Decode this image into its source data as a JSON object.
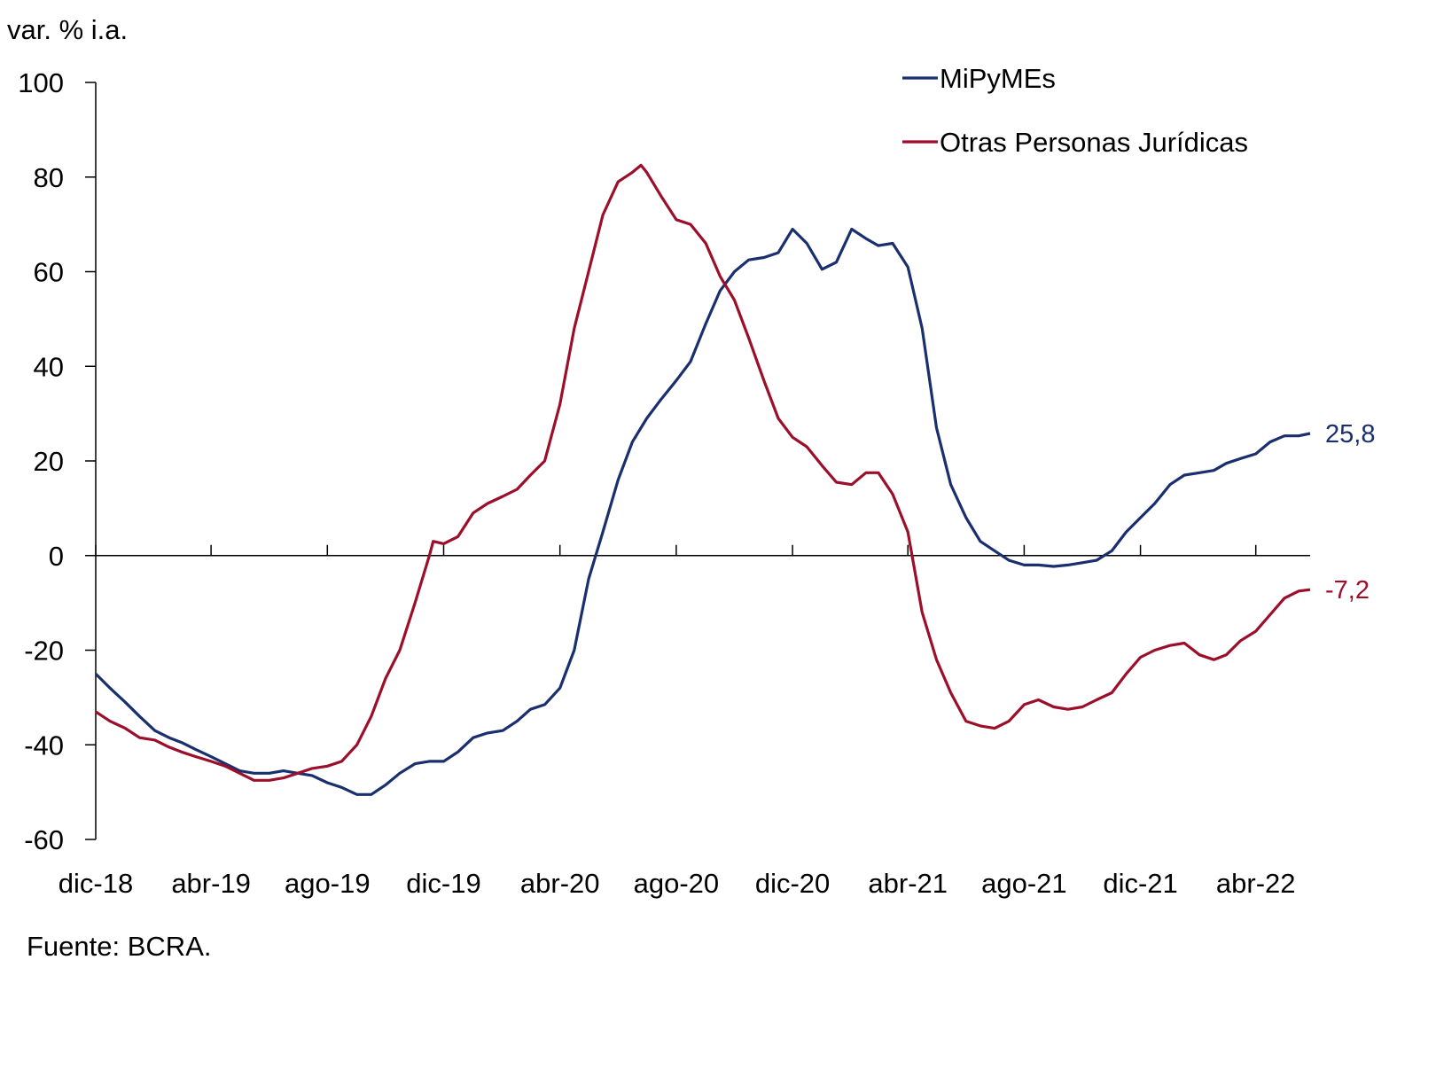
{
  "chart_data": {
    "type": "line",
    "ylabel": "var. % i.a.",
    "ylim": [
      -60,
      100
    ],
    "yticks": [
      100,
      80,
      60,
      40,
      20,
      0,
      -20,
      -40,
      -60
    ],
    "xticks": [
      "dic-18",
      "abr-19",
      "ago-19",
      "dic-19",
      "abr-20",
      "ago-20",
      "dic-20",
      "abr-21",
      "ago-21",
      "dic-21",
      "abr-22"
    ],
    "xtick_dates": [
      "2018-12-01",
      "2019-04-01",
      "2019-08-01",
      "2019-12-01",
      "2020-04-01",
      "2020-08-01",
      "2020-12-01",
      "2021-04-01",
      "2021-08-01",
      "2021-12-01",
      "2022-04-01"
    ],
    "xlim": [
      "2018-12-01",
      "2022-05-28"
    ],
    "grid": false,
    "legend_position": "top-right",
    "source": "Fuente: BCRA.",
    "series": [
      {
        "name": "MiPyMEs",
        "color": "#1a2f6e",
        "end_label": "25,8",
        "points": [
          [
            "2018-12-01",
            -25
          ],
          [
            "2018-12-16",
            -28
          ],
          [
            "2019-01-01",
            -31
          ],
          [
            "2019-01-16",
            -34
          ],
          [
            "2019-02-01",
            -37
          ],
          [
            "2019-02-16",
            -38.5
          ],
          [
            "2019-03-01",
            -39.5
          ],
          [
            "2019-03-16",
            -41
          ],
          [
            "2019-04-01",
            -42.5
          ],
          [
            "2019-04-16",
            -44
          ],
          [
            "2019-05-01",
            -45.5
          ],
          [
            "2019-05-16",
            -46
          ],
          [
            "2019-06-01",
            -46
          ],
          [
            "2019-06-16",
            -45.5
          ],
          [
            "2019-07-01",
            -46
          ],
          [
            "2019-07-16",
            -46.5
          ],
          [
            "2019-08-01",
            -48
          ],
          [
            "2019-08-16",
            -49
          ],
          [
            "2019-09-01",
            -50.5
          ],
          [
            "2019-09-16",
            -50.5
          ],
          [
            "2019-10-01",
            -48.5
          ],
          [
            "2019-10-16",
            -46
          ],
          [
            "2019-11-01",
            -44
          ],
          [
            "2019-11-16",
            -43.5
          ],
          [
            "2019-12-01",
            -43.5
          ],
          [
            "2019-12-16",
            -41.5
          ],
          [
            "2020-01-01",
            -38.5
          ],
          [
            "2020-01-16",
            -37.5
          ],
          [
            "2020-02-01",
            -37
          ],
          [
            "2020-02-16",
            -35
          ],
          [
            "2020-03-01",
            -32.5
          ],
          [
            "2020-03-16",
            -31.5
          ],
          [
            "2020-04-01",
            -28
          ],
          [
            "2020-04-16",
            -20
          ],
          [
            "2020-05-01",
            -5
          ],
          [
            "2020-05-16",
            5
          ],
          [
            "2020-06-01",
            16
          ],
          [
            "2020-06-16",
            24
          ],
          [
            "2020-07-01",
            29
          ],
          [
            "2020-07-16",
            33
          ],
          [
            "2020-08-01",
            37
          ],
          [
            "2020-08-16",
            41
          ],
          [
            "2020-09-01",
            49
          ],
          [
            "2020-09-16",
            56
          ],
          [
            "2020-10-01",
            60
          ],
          [
            "2020-10-16",
            62.5
          ],
          [
            "2020-11-01",
            63
          ],
          [
            "2020-11-16",
            64
          ],
          [
            "2020-12-01",
            69
          ],
          [
            "2020-12-16",
            66
          ],
          [
            "2021-01-01",
            60.5
          ],
          [
            "2021-01-16",
            62
          ],
          [
            "2021-02-01",
            69
          ],
          [
            "2021-02-16",
            67
          ],
          [
            "2021-03-01",
            65.5
          ],
          [
            "2021-03-16",
            66
          ],
          [
            "2021-04-01",
            61
          ],
          [
            "2021-04-16",
            48
          ],
          [
            "2021-05-01",
            27
          ],
          [
            "2021-05-16",
            15
          ],
          [
            "2021-06-01",
            8
          ],
          [
            "2021-06-16",
            3
          ],
          [
            "2021-07-01",
            1
          ],
          [
            "2021-07-16",
            -1
          ],
          [
            "2021-08-01",
            -2
          ],
          [
            "2021-08-16",
            -2
          ],
          [
            "2021-09-01",
            -2.3
          ],
          [
            "2021-09-16",
            -2
          ],
          [
            "2021-10-01",
            -1.5
          ],
          [
            "2021-10-16",
            -1
          ],
          [
            "2021-11-01",
            1
          ],
          [
            "2021-11-16",
            5
          ],
          [
            "2021-12-01",
            8
          ],
          [
            "2021-12-16",
            11
          ],
          [
            "2022-01-01",
            15
          ],
          [
            "2022-01-16",
            17
          ],
          [
            "2022-02-01",
            17.5
          ],
          [
            "2022-02-16",
            18
          ],
          [
            "2022-03-01",
            19.5
          ],
          [
            "2022-03-16",
            20.5
          ],
          [
            "2022-04-01",
            21.5
          ],
          [
            "2022-04-16",
            24
          ],
          [
            "2022-05-01",
            25.3
          ],
          [
            "2022-05-16",
            25.3
          ],
          [
            "2022-05-28",
            25.8
          ]
        ]
      },
      {
        "name": "Otras Personas Jurídicas",
        "color": "#9b0f2a",
        "end_label": "-7,2",
        "points": [
          [
            "2018-12-01",
            -33
          ],
          [
            "2018-12-16",
            -35
          ],
          [
            "2019-01-01",
            -36.5
          ],
          [
            "2019-01-16",
            -38.5
          ],
          [
            "2019-02-01",
            -39
          ],
          [
            "2019-02-16",
            -40.5
          ],
          [
            "2019-03-01",
            -41.5
          ],
          [
            "2019-03-16",
            -42.5
          ],
          [
            "2019-04-01",
            -43.5
          ],
          [
            "2019-04-16",
            -44.5
          ],
          [
            "2019-05-01",
            -46
          ],
          [
            "2019-05-16",
            -47.5
          ],
          [
            "2019-06-01",
            -47.5
          ],
          [
            "2019-06-16",
            -47
          ],
          [
            "2019-07-01",
            -46
          ],
          [
            "2019-07-16",
            -45
          ],
          [
            "2019-08-01",
            -44.5
          ],
          [
            "2019-08-16",
            -43.5
          ],
          [
            "2019-09-01",
            -40
          ],
          [
            "2019-09-16",
            -34
          ],
          [
            "2019-10-01",
            -26
          ],
          [
            "2019-10-16",
            -20
          ],
          [
            "2019-11-01",
            -10
          ],
          [
            "2019-11-16",
            0
          ],
          [
            "2019-11-20",
            3
          ],
          [
            "2019-12-01",
            2.5
          ],
          [
            "2019-12-16",
            4
          ],
          [
            "2020-01-01",
            9
          ],
          [
            "2020-01-16",
            11
          ],
          [
            "2020-02-01",
            12.5
          ],
          [
            "2020-02-16",
            14
          ],
          [
            "2020-03-01",
            17
          ],
          [
            "2020-03-16",
            20
          ],
          [
            "2020-04-01",
            32
          ],
          [
            "2020-04-16",
            48
          ],
          [
            "2020-05-01",
            60
          ],
          [
            "2020-05-16",
            72
          ],
          [
            "2020-06-01",
            79
          ],
          [
            "2020-06-16",
            81
          ],
          [
            "2020-06-25",
            82.5
          ],
          [
            "2020-07-01",
            81
          ],
          [
            "2020-07-16",
            76
          ],
          [
            "2020-08-01",
            71
          ],
          [
            "2020-08-16",
            70
          ],
          [
            "2020-09-01",
            66
          ],
          [
            "2020-09-16",
            59
          ],
          [
            "2020-10-01",
            54
          ],
          [
            "2020-10-16",
            46
          ],
          [
            "2020-11-01",
            37
          ],
          [
            "2020-11-16",
            29
          ],
          [
            "2020-12-01",
            25
          ],
          [
            "2020-12-16",
            23
          ],
          [
            "2021-01-01",
            19
          ],
          [
            "2021-01-16",
            15.5
          ],
          [
            "2021-02-01",
            15
          ],
          [
            "2021-02-16",
            17.5
          ],
          [
            "2021-03-01",
            17.5
          ],
          [
            "2021-03-16",
            13
          ],
          [
            "2021-04-01",
            5
          ],
          [
            "2021-04-16",
            -12
          ],
          [
            "2021-05-01",
            -22
          ],
          [
            "2021-05-16",
            -29
          ],
          [
            "2021-06-01",
            -35
          ],
          [
            "2021-06-16",
            -36
          ],
          [
            "2021-07-01",
            -36.5
          ],
          [
            "2021-07-16",
            -35
          ],
          [
            "2021-08-01",
            -31.5
          ],
          [
            "2021-08-16",
            -30.5
          ],
          [
            "2021-09-01",
            -32
          ],
          [
            "2021-09-16",
            -32.5
          ],
          [
            "2021-10-01",
            -32
          ],
          [
            "2021-10-16",
            -30.5
          ],
          [
            "2021-11-01",
            -29
          ],
          [
            "2021-11-16",
            -25
          ],
          [
            "2021-12-01",
            -21.5
          ],
          [
            "2021-12-16",
            -20
          ],
          [
            "2022-01-01",
            -19
          ],
          [
            "2022-01-16",
            -18.5
          ],
          [
            "2022-02-01",
            -21
          ],
          [
            "2022-02-16",
            -22
          ],
          [
            "2022-03-01",
            -21
          ],
          [
            "2022-03-16",
            -18
          ],
          [
            "2022-04-01",
            -16
          ],
          [
            "2022-04-16",
            -12.5
          ],
          [
            "2022-05-01",
            -9
          ],
          [
            "2022-05-16",
            -7.5
          ],
          [
            "2022-05-28",
            -7.2
          ]
        ]
      }
    ]
  }
}
